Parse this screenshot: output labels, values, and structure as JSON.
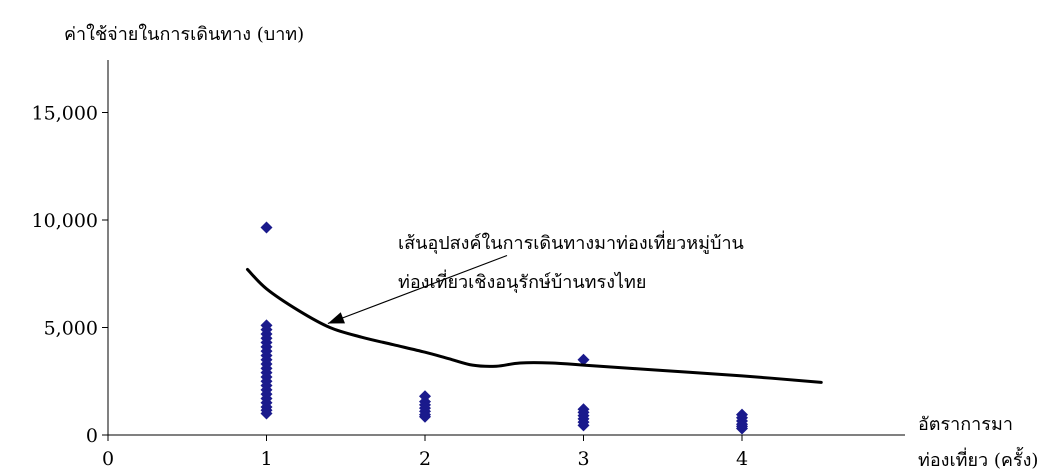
{
  "chart_data": {
    "type": "scatter",
    "ylabel": "ค่าใช้จ่ายในการเดินทาง (บาท)",
    "xlabel_lines": [
      "อัตราการมา",
      "ท่องเที่ยว (ครั้ง)"
    ],
    "xlim": [
      0,
      4.9
    ],
    "ylim": [
      0,
      17500
    ],
    "x_ticks": [
      0,
      1,
      2,
      3,
      4
    ],
    "x_tick_labels": [
      "0",
      "1",
      "2",
      "3",
      "4"
    ],
    "y_ticks": [
      0,
      5000,
      10000,
      15000
    ],
    "y_tick_labels": [
      "0",
      "5,000",
      "10,000",
      "15,000"
    ],
    "grid": false,
    "marker_color": "#1a1a8c",
    "line_color": "#000000",
    "points": [
      [
        1,
        9650
      ],
      [
        1,
        5100
      ],
      [
        1,
        4900
      ],
      [
        1,
        4700
      ],
      [
        1,
        4500
      ],
      [
        1,
        4300
      ],
      [
        1,
        4100
      ],
      [
        1,
        3900
      ],
      [
        1,
        3700
      ],
      [
        1,
        3500
      ],
      [
        1,
        3300
      ],
      [
        1,
        3100
      ],
      [
        1,
        2900
      ],
      [
        1,
        2700
      ],
      [
        1,
        2500
      ],
      [
        1,
        2300
      ],
      [
        1,
        2100
      ],
      [
        1,
        1900
      ],
      [
        1,
        1700
      ],
      [
        1,
        1500
      ],
      [
        1,
        1300
      ],
      [
        1,
        1150
      ],
      [
        1,
        1000
      ],
      [
        2,
        1800
      ],
      [
        2,
        1550
      ],
      [
        2,
        1400
      ],
      [
        2,
        1250
      ],
      [
        2,
        1100
      ],
      [
        2,
        950
      ],
      [
        2,
        850
      ],
      [
        3,
        3500
      ],
      [
        3,
        1200
      ],
      [
        3,
        1050
      ],
      [
        3,
        900
      ],
      [
        3,
        750
      ],
      [
        3,
        600
      ],
      [
        3,
        450
      ],
      [
        4,
        950
      ],
      [
        4,
        800
      ],
      [
        4,
        650
      ],
      [
        4,
        500
      ],
      [
        4,
        400
      ],
      [
        4,
        300
      ]
    ],
    "demand_curve": [
      [
        0.88,
        7700
      ],
      [
        1.0,
        6800
      ],
      [
        1.2,
        5800
      ],
      [
        1.4,
        5000
      ],
      [
        1.6,
        4550
      ],
      [
        1.8,
        4200
      ],
      [
        2.0,
        3850
      ],
      [
        2.15,
        3550
      ],
      [
        2.3,
        3250
      ],
      [
        2.45,
        3200
      ],
      [
        2.6,
        3350
      ],
      [
        2.8,
        3350
      ],
      [
        3.0,
        3250
      ],
      [
        3.5,
        3000
      ],
      [
        4.0,
        2750
      ],
      [
        4.5,
        2450
      ]
    ],
    "annotation": {
      "lines": [
        "เส้นอุปสงค์ในการเดินทางมาท่องเที่ยวหมู่บ้าน",
        "ท่องเที่ยวเชิงอนุรักษ์บ้านทรงไทย"
      ],
      "arrow_target": [
        1.4,
        5000
      ],
      "arrow_from": [
        2.0,
        9000
      ]
    }
  }
}
